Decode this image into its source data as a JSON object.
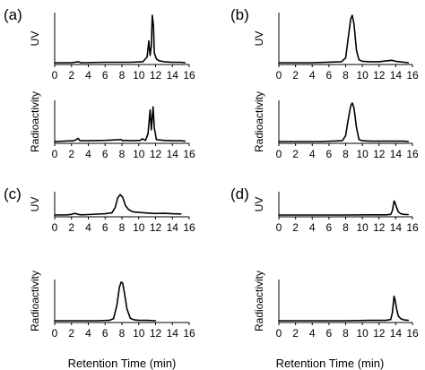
{
  "chart_data": [
    {
      "panel": "(a)",
      "type": "line",
      "xlim": [
        0,
        16
      ],
      "xticks": [
        0,
        2,
        4,
        6,
        8,
        10,
        12,
        14,
        16
      ],
      "subplots": [
        {
          "ylabel": "UV",
          "x": [
            0,
            2,
            2.8,
            3.1,
            6,
            9,
            10.5,
            11.0,
            11.2,
            11.35,
            11.5,
            11.6,
            11.75,
            11.85,
            12.1,
            12.4,
            13,
            14,
            15,
            15.5
          ],
          "y": [
            0,
            0,
            0.02,
            0,
            0.01,
            0.01,
            0.02,
            0.12,
            0.45,
            0.15,
            0.35,
            0.98,
            0.75,
            0.2,
            0.08,
            0.04,
            0.02,
            0.01,
            0.01,
            0
          ]
        },
        {
          "ylabel": "Radioactivity",
          "x": [
            0,
            2.2,
            2.5,
            2.8,
            3.0,
            4,
            6,
            7.9,
            8.1,
            8.5,
            9,
            10.2,
            10.4,
            10.8,
            11.1,
            11.35,
            11.5,
            11.7,
            11.85,
            12.1,
            12.4,
            13,
            14,
            15,
            15.5
          ],
          "y": [
            0,
            0.02,
            0.04,
            0.08,
            0.02,
            0.02,
            0.03,
            0.05,
            0.02,
            0.03,
            0.02,
            0.03,
            0.07,
            0.03,
            0.2,
            0.8,
            0.3,
            0.88,
            0.35,
            0.05,
            0.04,
            0.03,
            0.02,
            0.02,
            0.01
          ]
        }
      ]
    },
    {
      "panel": "(b)",
      "type": "line",
      "xlim": [
        0,
        16
      ],
      "xticks": [
        0,
        2,
        4,
        6,
        8,
        10,
        12,
        14,
        16
      ],
      "subplots": [
        {
          "ylabel": "UV",
          "x": [
            0,
            4,
            7.5,
            8.0,
            8.3,
            8.6,
            8.8,
            9.0,
            9.3,
            9.6,
            10,
            11,
            12,
            13,
            13.5,
            14,
            15,
            15.5
          ],
          "y": [
            0,
            0,
            0.02,
            0.1,
            0.5,
            0.9,
            0.98,
            0.8,
            0.25,
            0.06,
            0.03,
            0.02,
            0.02,
            0.04,
            0.05,
            0.03,
            0.01,
            0
          ]
        },
        {
          "ylabel": "Radioactivity",
          "x": [
            0,
            5,
            7.6,
            8.0,
            8.3,
            8.6,
            8.8,
            9.0,
            9.3,
            9.6,
            10,
            11,
            13,
            15,
            15.5
          ],
          "y": [
            0,
            0,
            0.02,
            0.15,
            0.55,
            0.9,
            0.98,
            0.85,
            0.35,
            0.05,
            0.02,
            0.01,
            0.01,
            0.01,
            0
          ]
        }
      ]
    },
    {
      "panel": "(c)",
      "type": "line",
      "xlim": [
        0,
        16
      ],
      "xticks": [
        0,
        2,
        4,
        6,
        8,
        10,
        12,
        14,
        16
      ],
      "subplots": [
        {
          "ylabel": "UV",
          "x": [
            0,
            1.5,
            2.0,
            2.4,
            2.8,
            3.2,
            4,
            5,
            6,
            6.8,
            7.2,
            7.5,
            7.8,
            8.1,
            8.4,
            8.8,
            9.3,
            10,
            11,
            12,
            13,
            14,
            15
          ],
          "y": [
            0,
            0.01,
            0.03,
            0.08,
            0.03,
            0.01,
            0.02,
            0.04,
            0.06,
            0.1,
            0.35,
            0.8,
            0.95,
            0.82,
            0.45,
            0.25,
            0.15,
            0.12,
            0.09,
            0.07,
            0.08,
            0.06,
            0.05
          ]
        },
        {
          "ylabel": "Radioactivity",
          "x": [
            0,
            5,
            6.5,
            7.0,
            7.4,
            7.7,
            7.9,
            8.1,
            8.3,
            8.6,
            9.0,
            9.5,
            10,
            11,
            12
          ],
          "y": [
            0,
            0,
            0.01,
            0.05,
            0.4,
            0.85,
            0.98,
            0.95,
            0.7,
            0.3,
            0.06,
            0.02,
            0.01,
            0.01,
            0
          ]
        }
      ]
    },
    {
      "panel": "(d)",
      "type": "line",
      "xlim": [
        0,
        16
      ],
      "xticks": [
        0,
        2,
        4,
        6,
        8,
        10,
        12,
        14,
        16
      ],
      "subplots": [
        {
          "ylabel": "UV",
          "x": [
            0,
            8,
            11,
            12.8,
            13.4,
            13.6,
            13.8,
            13.9,
            14.1,
            14.3,
            14.6,
            15,
            15.5
          ],
          "y": [
            0,
            0,
            0.01,
            0.01,
            0.03,
            0.2,
            0.65,
            0.6,
            0.35,
            0.15,
            0.06,
            0.03,
            0.02
          ]
        },
        {
          "ylabel": "Radioactivity",
          "x": [
            0,
            8,
            11,
            12.8,
            13.4,
            13.6,
            13.8,
            13.9,
            14.1,
            14.3,
            14.6,
            15,
            15.5
          ],
          "y": [
            0,
            0,
            0.01,
            0.01,
            0.03,
            0.2,
            0.62,
            0.55,
            0.3,
            0.12,
            0.05,
            0.02,
            0.01
          ]
        }
      ]
    }
  ],
  "xlabel": "Retention Time (min)"
}
